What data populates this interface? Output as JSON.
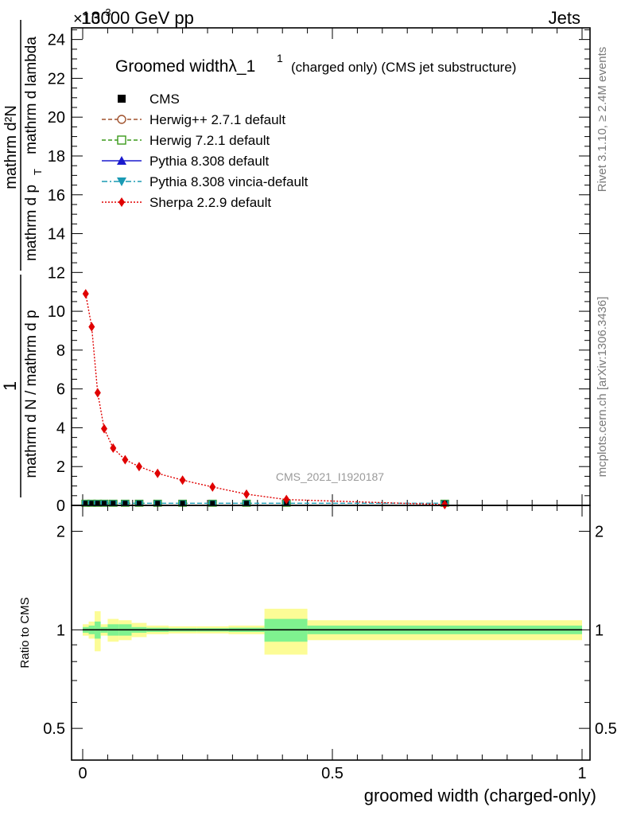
{
  "header": {
    "left": "13000 GeV pp",
    "right": "Jets",
    "exponent": "×10",
    "exponent_power": "-3"
  },
  "side_text": {
    "rivet": "Rivet 3.1.10, ≥ 2.4M events",
    "mcplots": "mcplots.cern.ch [arXiv:1306.3436]"
  },
  "watermark": "CMS_2021_I1920187",
  "chart_data": [
    {
      "type": "line",
      "panel": "main",
      "title": "Groomed widthλ_1",
      "title_sup": "1",
      "title_tail": "(charged only) (CMS jet substructure)",
      "xlabel": "groomed width (charged-only)",
      "ylabel_numerator": "1",
      "ylabel_denominator": "mathrm d N / mathrm d p",
      "ylabel_numerator_right": "mathrm d²N",
      "ylabel_denominator_right": "mathrm d p",
      "ylabel_sub": "T",
      "ylabel_tail": "mathrm d lambda",
      "ylabel_full": "1 / (mathrm d N / mathrm d p_T) · mathrm d²N / (mathrm d p_T mathrm d lambda)",
      "xlim": [
        0,
        1
      ],
      "ylim": [
        0,
        24.6
      ],
      "y_scale_note": "×10^-3",
      "xticks": [
        "0",
        "0.5",
        "1"
      ],
      "yticks": [
        "0",
        "2",
        "4",
        "6",
        "8",
        "10",
        "12",
        "14",
        "16",
        "18",
        "20",
        "22",
        "24"
      ],
      "legend": [
        {
          "name": "CMS",
          "color": "#000000",
          "marker": "square-filled",
          "line": "none"
        },
        {
          "name": "Herwig++ 2.7.1 default",
          "color": "#a0522d",
          "marker": "circle-open",
          "line": "dashed"
        },
        {
          "name": "Herwig 7.2.1 default",
          "color": "#3a9a1a",
          "marker": "square-open",
          "line": "dashed"
        },
        {
          "name": "Pythia 8.308 default",
          "color": "#1a1acd",
          "marker": "triangle-up",
          "line": "solid"
        },
        {
          "name": "Pythia 8.308 vincia-default",
          "color": "#1a9ab4",
          "marker": "triangle-down",
          "line": "dashdot"
        },
        {
          "name": "Sherpa 2.2.9 default",
          "color": "#e00000",
          "marker": "diamond",
          "line": "dotted"
        }
      ],
      "series": [
        {
          "name": "Sherpa 2.2.9 default",
          "x": [
            0.006,
            0.018,
            0.03,
            0.043,
            0.061,
            0.085,
            0.113,
            0.15,
            0.2,
            0.26,
            0.328,
            0.408,
            0.725
          ],
          "y": [
            10.9,
            9.2,
            5.8,
            3.95,
            2.95,
            2.35,
            2.0,
            1.65,
            1.3,
            0.95,
            0.58,
            0.3,
            0.04
          ]
        },
        {
          "name": "CMS",
          "x": [
            0.006,
            0.018,
            0.03,
            0.043,
            0.061,
            0.085,
            0.113,
            0.15,
            0.2,
            0.26,
            0.328,
            0.408,
            0.725
          ],
          "y": [
            0.03,
            0.03,
            0.03,
            0.03,
            0.03,
            0.03,
            0.03,
            0.03,
            0.03,
            0.03,
            0.03,
            0.03,
            0.03
          ]
        }
      ]
    },
    {
      "type": "area",
      "panel": "ratio",
      "ylabel": "Ratio to CMS",
      "xlabel": "groomed width (charged-only)",
      "xlim": [
        0,
        1
      ],
      "scale": "log",
      "ylim": [
        0.4,
        2.4
      ],
      "yticks": [
        "0.5",
        "1",
        "2"
      ],
      "xticks": [
        "0",
        "0.5",
        "1"
      ],
      "bins": [
        {
          "x0": 0.0,
          "x1": 0.012,
          "stat": 0.02,
          "total": 0.04
        },
        {
          "x0": 0.012,
          "x1": 0.024,
          "stat": 0.03,
          "total": 0.06
        },
        {
          "x0": 0.024,
          "x1": 0.036,
          "stat": 0.06,
          "total": 0.14
        },
        {
          "x0": 0.036,
          "x1": 0.05,
          "stat": 0.02,
          "total": 0.04
        },
        {
          "x0": 0.05,
          "x1": 0.072,
          "stat": 0.04,
          "total": 0.08
        },
        {
          "x0": 0.072,
          "x1": 0.098,
          "stat": 0.04,
          "total": 0.07
        },
        {
          "x0": 0.098,
          "x1": 0.128,
          "stat": 0.02,
          "total": 0.05
        },
        {
          "x0": 0.128,
          "x1": 0.172,
          "stat": 0.015,
          "total": 0.03
        },
        {
          "x0": 0.172,
          "x1": 0.228,
          "stat": 0.012,
          "total": 0.025
        },
        {
          "x0": 0.228,
          "x1": 0.292,
          "stat": 0.012,
          "total": 0.025
        },
        {
          "x0": 0.292,
          "x1": 0.364,
          "stat": 0.015,
          "total": 0.03
        },
        {
          "x0": 0.364,
          "x1": 0.45,
          "stat": 0.08,
          "total": 0.16
        },
        {
          "x0": 0.45,
          "x1": 1.0,
          "stat": 0.03,
          "total": 0.07
        }
      ],
      "colors": {
        "stat": "#7ff28f",
        "total": "#fcfc96",
        "line": "#000000"
      }
    }
  ]
}
